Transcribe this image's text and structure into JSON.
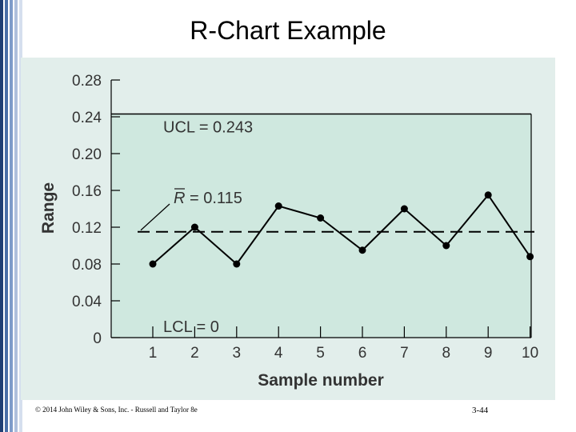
{
  "slide": {
    "title": "R-Chart Example",
    "footer_copyright": "© 2014 John Wiley & Sons, Inc. - Russell and Taylor 8e",
    "page_number": "3-44"
  },
  "colors": {
    "panel_bg": "#e2eeeb",
    "control_region": "#cfe8df",
    "line": "#000000",
    "axis_text": "#333333"
  },
  "chart_data": {
    "type": "line",
    "title": "",
    "xlabel": "Sample number",
    "ylabel": "Range",
    "x": [
      1,
      2,
      3,
      4,
      5,
      6,
      7,
      8,
      9,
      10
    ],
    "x_tick_labels": [
      "1",
      "2",
      "3",
      "4",
      "5",
      "6",
      "7",
      "8",
      "9",
      "10"
    ],
    "y_tick_labels": [
      "0",
      "0.04",
      "0.08",
      "0.12",
      "0.16",
      "0.20",
      "0.24",
      "0.28"
    ],
    "y_ticks": [
      0,
      0.04,
      0.08,
      0.12,
      0.16,
      0.2,
      0.24,
      0.28
    ],
    "ylim": [
      0,
      0.28
    ],
    "xlim": [
      0.1,
      10.1
    ],
    "series": [
      {
        "values": [
          0.08,
          0.12,
          0.08,
          0.143,
          0.13,
          0.095,
          0.14,
          0.1,
          0.155,
          0.088
        ]
      }
    ],
    "ucl": {
      "value": 0.243,
      "label": "UCL = 0.243"
    },
    "center": {
      "value": 0.115,
      "label_symbol": "R",
      "label_rest": " = 0.115"
    },
    "lcl": {
      "value": 0,
      "label": "LCL = 0"
    },
    "grid": false,
    "legend": "none"
  }
}
